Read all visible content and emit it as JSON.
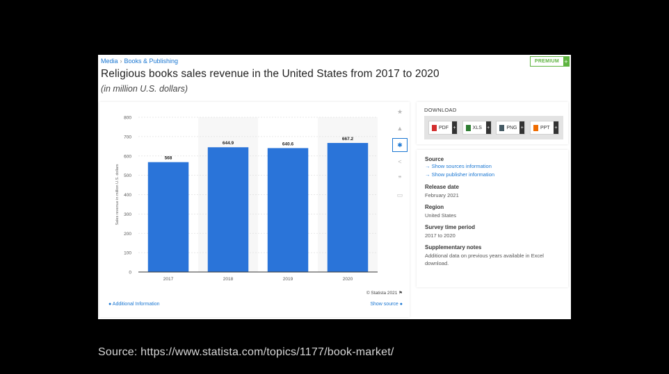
{
  "breadcrumb": {
    "parent": "Media",
    "child": "Books & Publishing"
  },
  "premium": {
    "label": "PREMIUM",
    "plus": "+"
  },
  "title": "Religious books sales revenue in the United States from 2017 to 2020",
  "subtitle": "(in million U.S. dollars)",
  "toolbar": [
    {
      "name": "favorite-star-icon",
      "glyph": "★"
    },
    {
      "name": "notification-bell-icon",
      "glyph": "▲"
    },
    {
      "name": "settings-gear-icon",
      "glyph": "✱"
    },
    {
      "name": "share-icon",
      "glyph": "<"
    },
    {
      "name": "cite-quote-icon",
      "glyph": "❞"
    },
    {
      "name": "print-icon",
      "glyph": "▭"
    }
  ],
  "chart_data": {
    "type": "bar",
    "categories": [
      "2017",
      "2018",
      "2019",
      "2020"
    ],
    "values": [
      568,
      644.9,
      640.6,
      667.2
    ],
    "value_labels": [
      "568",
      "644.9",
      "640.6",
      "667.2"
    ],
    "ylabel": "Sales revenue in million U.S. dollars",
    "ylim": [
      0,
      800
    ],
    "yticks": [
      0,
      100,
      200,
      300,
      400,
      500,
      600,
      700,
      800
    ],
    "grid": true,
    "bar_color": "#2a74d9"
  },
  "chart_footer": {
    "copyright": "© Statista 2021",
    "additional_info": "Additional Information",
    "show_source": "Show source"
  },
  "download": {
    "title": "DOWNLOAD",
    "buttons": [
      {
        "label": "PDF",
        "color": "#d32f2f"
      },
      {
        "label": "XLS",
        "color": "#2e7d32"
      },
      {
        "label": "PNG",
        "color": "#455a64"
      },
      {
        "label": "PPT",
        "color": "#ef6c00"
      }
    ]
  },
  "info": {
    "source_heading": "Source",
    "source_link1": "→ Show sources information",
    "source_link2": "→ Show publisher information",
    "release_heading": "Release date",
    "release_value": "February 2021",
    "region_heading": "Region",
    "region_value": "United States",
    "survey_heading": "Survey time period",
    "survey_value": "2017 to 2020",
    "notes_heading": "Supplementary notes",
    "notes_value": "Additional data on previous years available in Excel download."
  },
  "source_caption": "Source: https://www.statista.com/topics/1177/book-market/"
}
